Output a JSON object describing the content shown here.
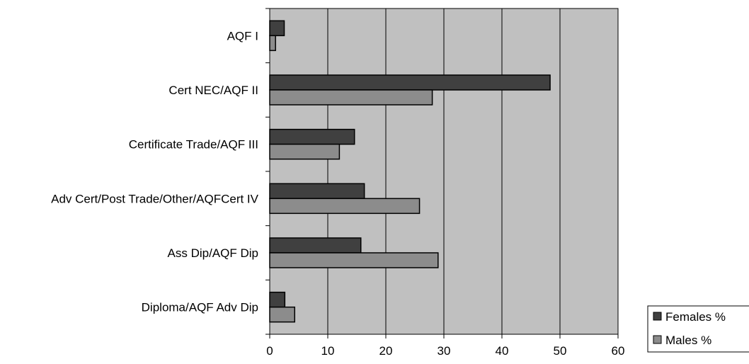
{
  "chart_data": {
    "type": "bar",
    "orientation": "horizontal",
    "categories": [
      "AQF I",
      "Cert NEC/AQF II",
      "Certificate Trade/AQF III",
      "Adv Cert/Post Trade/Other/AQFCert IV",
      "Ass Dip/AQF Dip",
      "Diploma/AQF Adv Dip"
    ],
    "series": [
      {
        "name": "Females %",
        "values": [
          2.5,
          48.3,
          14.6,
          16.3,
          15.7,
          2.6
        ],
        "color": "#404040"
      },
      {
        "name": "Males %",
        "values": [
          1.0,
          28.0,
          12.0,
          25.8,
          29.0,
          4.3
        ],
        "color": "#8c8c8c"
      }
    ],
    "xlim": [
      0,
      60
    ],
    "xticks": [
      "0",
      "10",
      "20",
      "30",
      "40",
      "50",
      "60"
    ],
    "title": "",
    "xlabel": "",
    "ylabel": "",
    "grid": true,
    "legend_position": "bottom-right",
    "plot_background": "#c0c0c0"
  }
}
